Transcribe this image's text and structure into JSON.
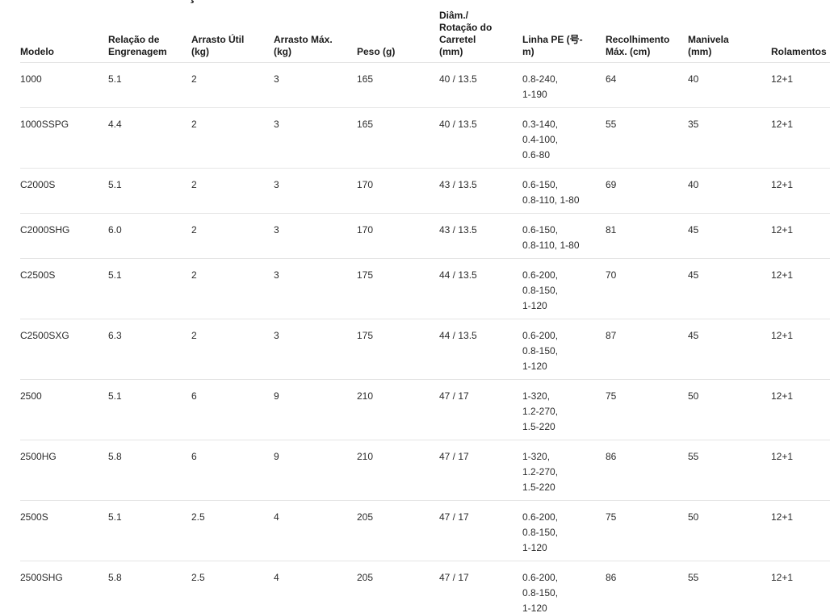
{
  "page": {
    "clipped_title_fragment": "ç"
  },
  "colors": {
    "background": "#ffffff",
    "header_text": "#1a1a1a",
    "body_text": "#2b2b2b",
    "separator": "#e5e5e5"
  },
  "table": {
    "columns": [
      {
        "key": "model",
        "lines": [
          "Modelo"
        ]
      },
      {
        "key": "gear_ratio",
        "lines": [
          "Relação de",
          "Engrenagem"
        ]
      },
      {
        "key": "useful_drag",
        "lines": [
          "Arrasto Útil",
          "(kg)"
        ]
      },
      {
        "key": "max_drag",
        "lines": [
          "Arrasto Máx.",
          "(kg)"
        ]
      },
      {
        "key": "weight",
        "lines": [
          "Peso (g)"
        ]
      },
      {
        "key": "spool",
        "lines": [
          "Diâm./",
          "Rotação do",
          "Carretel",
          "(mm)"
        ]
      },
      {
        "key": "pe_line",
        "lines": [
          "Linha PE (号-",
          "m)"
        ]
      },
      {
        "key": "retrieve",
        "lines": [
          "Recolhimento",
          "Máx. (cm)"
        ]
      },
      {
        "key": "handle",
        "lines": [
          "Manivela",
          "(mm)"
        ]
      },
      {
        "key": "bearings",
        "lines": [
          "Rolamentos"
        ]
      }
    ],
    "rows": [
      {
        "model": "1000",
        "gear_ratio": "5.1",
        "useful_drag": "2",
        "max_drag": "3",
        "weight": "165",
        "spool": "40 / 13.5",
        "pe_line": [
          "0.8-240,",
          "1-190"
        ],
        "retrieve": "64",
        "handle": "40",
        "bearings": "12+1"
      },
      {
        "model": "1000SSPG",
        "gear_ratio": "4.4",
        "useful_drag": "2",
        "max_drag": "3",
        "weight": "165",
        "spool": "40 / 13.5",
        "pe_line": [
          "0.3-140,",
          "0.4-100,",
          "0.6-80"
        ],
        "retrieve": "55",
        "handle": "35",
        "bearings": "12+1"
      },
      {
        "model": "C2000S",
        "gear_ratio": "5.1",
        "useful_drag": "2",
        "max_drag": "3",
        "weight": "170",
        "spool": "43 / 13.5",
        "pe_line": [
          "0.6-150,",
          "0.8-110, 1-80"
        ],
        "retrieve": "69",
        "handle": "40",
        "bearings": "12+1"
      },
      {
        "model": "C2000SHG",
        "gear_ratio": "6.0",
        "useful_drag": "2",
        "max_drag": "3",
        "weight": "170",
        "spool": "43 / 13.5",
        "pe_line": [
          "0.6-150,",
          "0.8-110, 1-80"
        ],
        "retrieve": "81",
        "handle": "45",
        "bearings": "12+1"
      },
      {
        "model": "C2500S",
        "gear_ratio": "5.1",
        "useful_drag": "2",
        "max_drag": "3",
        "weight": "175",
        "spool": "44 / 13.5",
        "pe_line": [
          "0.6-200,",
          "0.8-150,",
          "1-120"
        ],
        "retrieve": "70",
        "handle": "45",
        "bearings": "12+1"
      },
      {
        "model": "C2500SXG",
        "gear_ratio": "6.3",
        "useful_drag": "2",
        "max_drag": "3",
        "weight": "175",
        "spool": "44 / 13.5",
        "pe_line": [
          "0.6-200,",
          "0.8-150,",
          "1-120"
        ],
        "retrieve": "87",
        "handle": "45",
        "bearings": "12+1"
      },
      {
        "model": "2500",
        "gear_ratio": "5.1",
        "useful_drag": "6",
        "max_drag": "9",
        "weight": "210",
        "spool": "47 / 17",
        "pe_line": [
          "1-320,",
          "1.2-270,",
          "1.5-220"
        ],
        "retrieve": "75",
        "handle": "50",
        "bearings": "12+1"
      },
      {
        "model": "2500HG",
        "gear_ratio": "5.8",
        "useful_drag": "6",
        "max_drag": "9",
        "weight": "210",
        "spool": "47 / 17",
        "pe_line": [
          "1-320,",
          "1.2-270,",
          "1.5-220"
        ],
        "retrieve": "86",
        "handle": "55",
        "bearings": "12+1"
      },
      {
        "model": "2500S",
        "gear_ratio": "5.1",
        "useful_drag": "2.5",
        "max_drag": "4",
        "weight": "205",
        "spool": "47 / 17",
        "pe_line": [
          "0.6-200,",
          "0.8-150,",
          "1-120"
        ],
        "retrieve": "75",
        "handle": "50",
        "bearings": "12+1"
      },
      {
        "model": "2500SHG",
        "gear_ratio": "5.8",
        "useful_drag": "2.5",
        "max_drag": "4",
        "weight": "205",
        "spool": "47 / 17",
        "pe_line": [
          "0.6-200,",
          "0.8-150,",
          "1-120"
        ],
        "retrieve": "86",
        "handle": "55",
        "bearings": "12+1"
      }
    ]
  }
}
